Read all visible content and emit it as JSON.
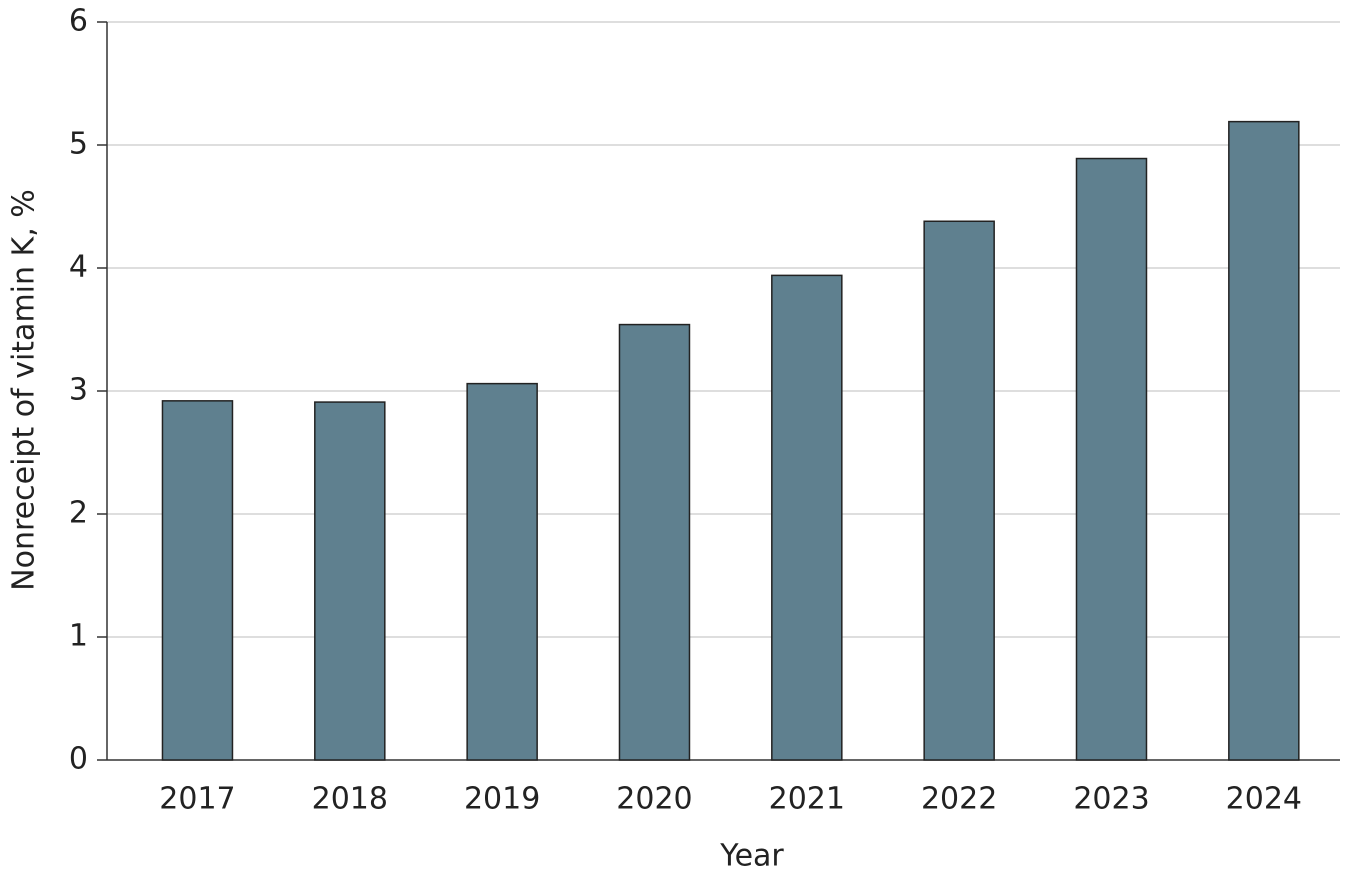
{
  "chart_data": {
    "type": "bar",
    "x_label": "Year",
    "y_label": "Nonreceipt of vitamin K, %",
    "categories": [
      "2017",
      "2018",
      "2019",
      "2020",
      "2021",
      "2022",
      "2023",
      "2024"
    ],
    "values": [
      2.92,
      2.91,
      3.06,
      3.54,
      3.94,
      4.38,
      4.89,
      5.19
    ],
    "color": "#5f808f",
    "ylim": [
      0,
      6
    ],
    "yticks": [
      0,
      1,
      2,
      3,
      4,
      5,
      6
    ],
    "grid": true
  }
}
